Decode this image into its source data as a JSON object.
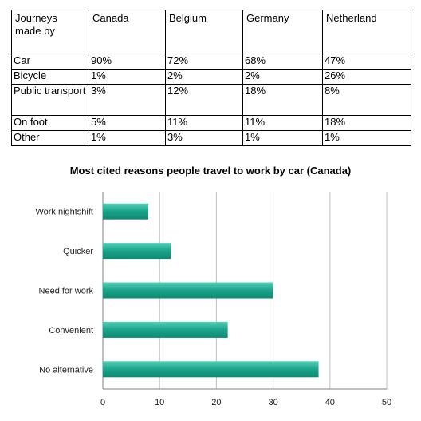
{
  "table": {
    "header": [
      "Journeys made by",
      "Canada",
      "Belgium",
      "Germany",
      "Netherland"
    ],
    "rows": [
      {
        "mode": "Car",
        "values": [
          "90%",
          "72%",
          "68%",
          "47%"
        ]
      },
      {
        "mode": "Bicycle",
        "values": [
          "1%",
          "2%",
          "2%",
          "26%"
        ]
      },
      {
        "mode": "Public transport",
        "values": [
          "3%",
          "12%",
          "18%",
          "8%"
        ]
      },
      {
        "mode": "On foot",
        "values": [
          "5%",
          "11%",
          "11%",
          "18%"
        ]
      },
      {
        "mode": "Other",
        "values": [
          "1%",
          "3%",
          "1%",
          "1%"
        ]
      }
    ]
  },
  "chart_data": {
    "type": "bar",
    "orientation": "horizontal",
    "title": "Most cited reasons people travel to work by car (Canada)",
    "categories": [
      "Work nightshift",
      "Quicker",
      "Need for work",
      "Convenient",
      "No alternative"
    ],
    "values": [
      8,
      12,
      30,
      22,
      38
    ],
    "xlim": [
      0,
      50
    ],
    "xticks": [
      0,
      10,
      20,
      30,
      40,
      50
    ],
    "grid": "vertical",
    "bar_color": "#1aa38a",
    "grid_color": "#bfbfbf",
    "axis_color": "#808080"
  }
}
